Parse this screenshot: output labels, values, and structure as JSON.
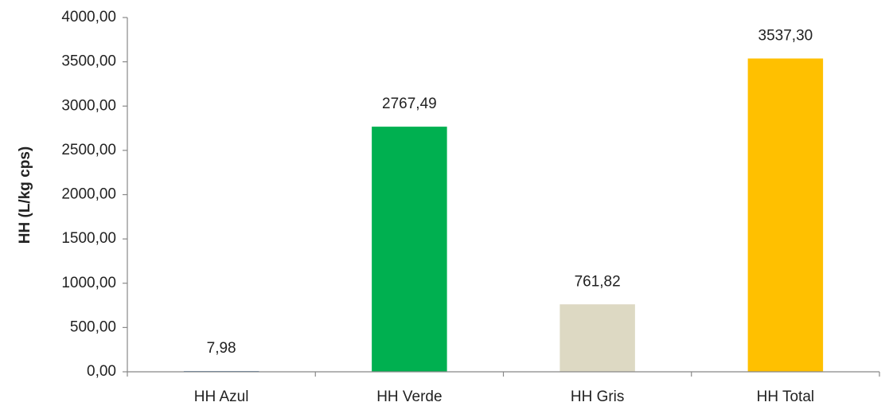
{
  "chart_data": {
    "type": "bar",
    "y_label": "HH (L/kg cps)",
    "categories": [
      "HH Azul",
      "HH Verde",
      "HH Gris",
      "HH Total"
    ],
    "values": [
      7.98,
      2767.49,
      761.82,
      3537.3
    ],
    "value_labels": [
      "7,98",
      "2767,49",
      "761,82",
      "3537,30"
    ],
    "colors": [
      "#3f72a8",
      "#00b050",
      "#ddd9c3",
      "#ffc000"
    ],
    "ylim": [
      0,
      4000
    ],
    "yticks": [
      {
        "value": 0,
        "label": "0,00"
      },
      {
        "value": 500,
        "label": "500,00"
      },
      {
        "value": 1000,
        "label": "1000,00"
      },
      {
        "value": 1500,
        "label": "1500,00"
      },
      {
        "value": 2000,
        "label": "2000,00"
      },
      {
        "value": 2500,
        "label": "2500,00"
      },
      {
        "value": 3000,
        "label": "3000,00"
      },
      {
        "value": 3500,
        "label": "3500,00"
      },
      {
        "value": 4000,
        "label": "4000,00"
      }
    ],
    "grid": false
  }
}
